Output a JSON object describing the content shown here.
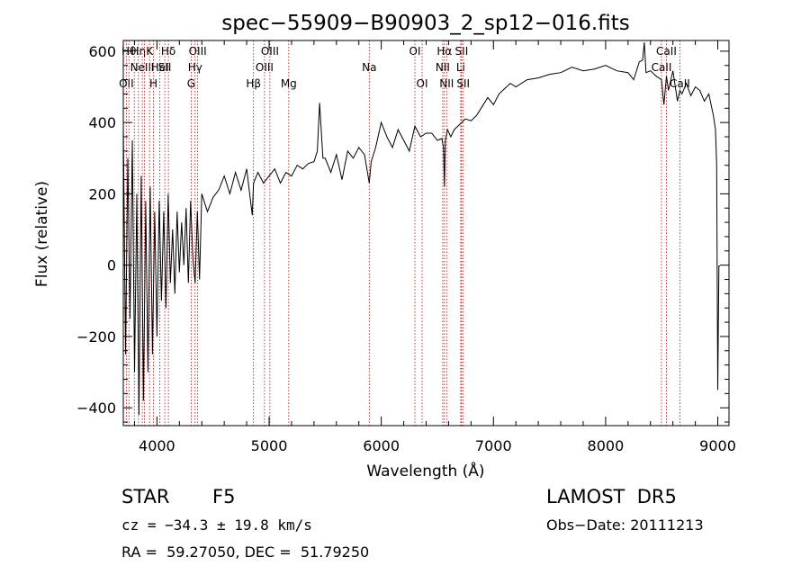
{
  "chart_data": {
    "type": "line",
    "title": "spec−55909−B90903_2_sp12−016.fits",
    "xlabel": "Wavelength (Å)",
    "ylabel": "Flux (relative)",
    "xlim": [
      3700,
      9100
    ],
    "ylim": [
      -450,
      630
    ],
    "xticks": [
      {
        "v": 4000,
        "label": "4000"
      },
      {
        "v": 5000,
        "label": "5000"
      },
      {
        "v": 6000,
        "label": "6000"
      },
      {
        "v": 7000,
        "label": "7000"
      },
      {
        "v": 8000,
        "label": "8000"
      },
      {
        "v": 9000,
        "label": "9000"
      }
    ],
    "yticks": [
      {
        "v": -400,
        "label": "−400"
      },
      {
        "v": -200,
        "label": "−200"
      },
      {
        "v": 0,
        "label": "0"
      },
      {
        "v": 200,
        "label": "200"
      },
      {
        "v": 400,
        "label": "400"
      },
      {
        "v": 600,
        "label": "600"
      }
    ],
    "series": [
      {
        "x": [
          3700,
          3720,
          3740,
          3760,
          3780,
          3800,
          3820,
          3840,
          3860,
          3880,
          3900,
          3920,
          3940,
          3960,
          3980,
          4000,
          4020,
          4040,
          4060,
          4080,
          4100,
          4120,
          4140,
          4160,
          4180,
          4200,
          4220,
          4240,
          4260,
          4280,
          4300,
          4320,
          4340,
          4360,
          4380,
          4400,
          4450,
          4500,
          4550,
          4600,
          4650,
          4700,
          4750,
          4800,
          4850,
          4861,
          4900,
          4950,
          5000,
          5050,
          5100,
          5150,
          5200,
          5250,
          5300,
          5350,
          5400,
          5430,
          5450,
          5480,
          5500,
          5550,
          5600,
          5650,
          5700,
          5750,
          5800,
          5850,
          5893,
          5910,
          5950,
          6000,
          6050,
          6100,
          6150,
          6200,
          6250,
          6300,
          6350,
          6400,
          6450,
          6500,
          6540,
          6555,
          6563,
          6572,
          6590,
          6620,
          6650,
          6700,
          6750,
          6800,
          6850,
          6900,
          6950,
          7000,
          7050,
          7100,
          7150,
          7200,
          7300,
          7400,
          7500,
          7600,
          7700,
          7800,
          7900,
          8000,
          8100,
          8200,
          8250,
          8300,
          8330,
          8345,
          8360,
          8400,
          8450,
          8498,
          8520,
          8542,
          8560,
          8600,
          8640,
          8662,
          8680,
          8720,
          8760,
          8800,
          8840,
          8880,
          8920,
          8940,
          8960,
          8980,
          8990,
          9000,
          9010,
          9020
        ],
        "y": [
          400,
          -250,
          300,
          -150,
          350,
          -300,
          200,
          -420,
          250,
          -380,
          180,
          -300,
          220,
          -250,
          150,
          -200,
          180,
          -100,
          150,
          -120,
          200,
          -50,
          100,
          -80,
          150,
          -20,
          120,
          0,
          160,
          -50,
          180,
          20,
          -50,
          150,
          -40,
          200,
          150,
          190,
          210,
          250,
          200,
          260,
          210,
          270,
          140,
          230,
          260,
          230,
          250,
          270,
          230,
          260,
          250,
          280,
          270,
          285,
          290,
          320,
          455,
          300,
          300,
          260,
          310,
          240,
          320,
          300,
          330,
          310,
          230,
          290,
          330,
          400,
          360,
          330,
          380,
          350,
          320,
          390,
          360,
          370,
          370,
          350,
          355,
          330,
          220,
          350,
          380,
          360,
          380,
          395,
          410,
          405,
          420,
          445,
          470,
          450,
          480,
          495,
          510,
          500,
          520,
          525,
          535,
          540,
          555,
          545,
          550,
          560,
          545,
          540,
          520,
          570,
          575,
          625,
          540,
          545,
          530,
          520,
          450,
          530,
          490,
          545,
          460,
          490,
          480,
          510,
          475,
          500,
          490,
          460,
          480,
          450,
          420,
          380,
          280,
          -350,
          -2,
          -2
        ]
      }
    ],
    "lines": [
      {
        "wave": 3727,
        "row": 2,
        "label": "OII"
      },
      {
        "wave": 3750,
        "row": 0,
        "label": "Hθ"
      },
      {
        "wave": 3798,
        "row": 0,
        "label": ""
      },
      {
        "wave": 3835,
        "row": 0,
        "label": "Hη"
      },
      {
        "wave": 3869,
        "row": 1,
        "label": "NeIII"
      },
      {
        "wave": 3889,
        "row": 0,
        "label": ""
      },
      {
        "wave": 3934,
        "row": 0,
        "label": "K"
      },
      {
        "wave": 3969,
        "row": 2,
        "label": "H"
      },
      {
        "wave": 4026,
        "row": 1,
        "label": "HeI"
      },
      {
        "wave": 4070,
        "row": 1,
        "label": "SII"
      },
      {
        "wave": 4102,
        "row": 0,
        "label": "Hδ"
      },
      {
        "wave": 4305,
        "row": 2,
        "label": "G"
      },
      {
        "wave": 4340,
        "row": 1,
        "label": "Hγ"
      },
      {
        "wave": 4363,
        "row": 0,
        "label": "OIII"
      },
      {
        "wave": 4861,
        "row": 2,
        "label": "Hβ"
      },
      {
        "wave": 4959,
        "row": 1,
        "label": "OIII"
      },
      {
        "wave": 5007,
        "row": 0,
        "label": "OIII"
      },
      {
        "wave": 5175,
        "row": 2,
        "label": "Mg"
      },
      {
        "wave": 5893,
        "row": 1,
        "label": "Na"
      },
      {
        "wave": 6300,
        "row": 0,
        "label": "OI"
      },
      {
        "wave": 6364,
        "row": 2,
        "label": "OI"
      },
      {
        "wave": 6548,
        "row": 1,
        "label": "NII"
      },
      {
        "wave": 6563,
        "row": 0,
        "label": "Hα"
      },
      {
        "wave": 6583,
        "row": 2,
        "label": "NII"
      },
      {
        "wave": 6708,
        "row": 1,
        "label": "Li"
      },
      {
        "wave": 6716,
        "row": 0,
        "label": "SII"
      },
      {
        "wave": 6731,
        "row": 2,
        "label": "SII"
      },
      {
        "wave": 8498,
        "row": 1,
        "label": "CaII"
      },
      {
        "wave": 8542,
        "row": 0,
        "label": "CaII"
      },
      {
        "wave": 8662,
        "row": 2,
        "label": "CaII"
      }
    ]
  },
  "info": {
    "object_type": "STAR",
    "subclass": "F5",
    "survey": "LAMOST  DR5",
    "cz": "cz = −34.3 ± 19.8 km/s",
    "obs_date": "Obs−Date: 20111213",
    "coords": "RA =  59.27050, DEC =  51.79250"
  }
}
